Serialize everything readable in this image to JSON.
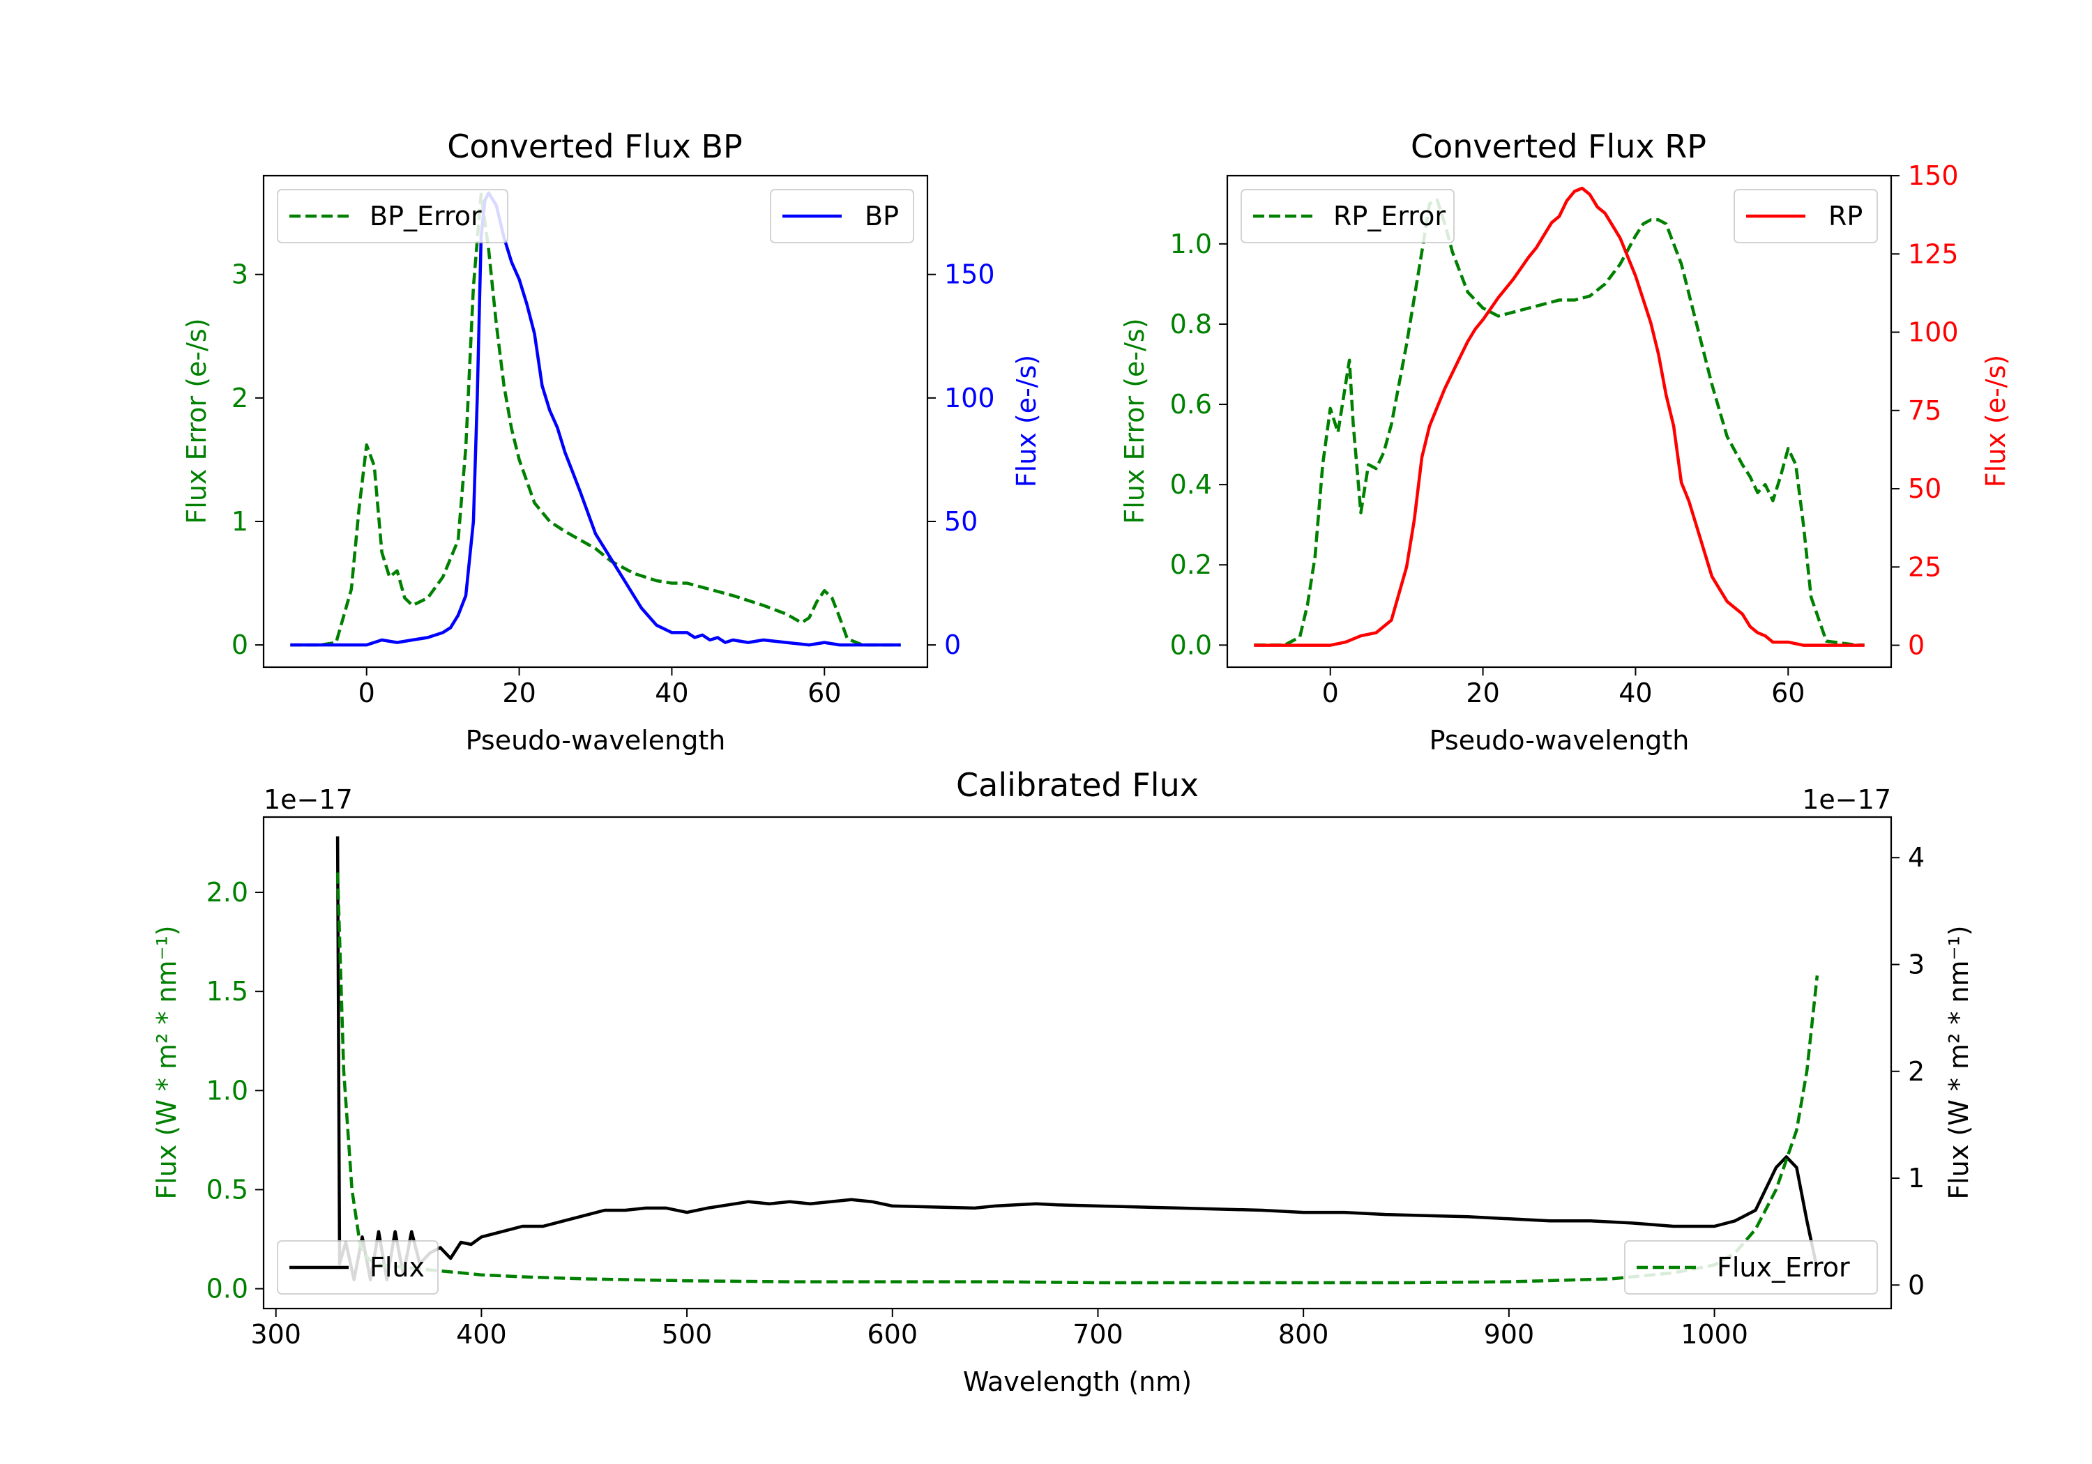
{
  "chart_data": [
    {
      "type": "line",
      "title": "Converted Flux BP",
      "xlabel": "Pseudo-wavelength",
      "xlim": [
        -13.5,
        73.5
      ],
      "xticks": [
        0,
        20,
        40,
        60
      ],
      "left_axis": {
        "label": "Flux Error (e-/s)",
        "color": "#008000",
        "ylim": [
          -0.18,
          3.8
        ],
        "ticks": [
          0,
          1,
          2,
          3
        ]
      },
      "right_axis": {
        "label": "Flux (e-/s)",
        "color": "#0000ff",
        "ylim": [
          -9,
          190
        ],
        "ticks": [
          0,
          50,
          100,
          150
        ]
      },
      "series": [
        {
          "name": "BP_Error",
          "axis": "left",
          "color": "#008000",
          "style": "dashed",
          "x": [
            -10,
            -6,
            -4,
            -2,
            -1,
            0,
            1,
            2,
            3,
            4,
            5,
            6,
            8,
            10,
            12,
            13,
            14,
            15,
            16,
            17,
            18,
            19,
            20,
            22,
            24,
            26,
            28,
            30,
            32,
            35,
            38,
            40,
            42,
            45,
            48,
            52,
            55,
            57,
            58,
            59,
            60,
            61,
            62,
            63,
            65,
            67,
            69,
            70
          ],
          "y": [
            0,
            0,
            0.02,
            0.45,
            1.1,
            1.62,
            1.45,
            0.75,
            0.55,
            0.6,
            0.38,
            0.32,
            0.38,
            0.55,
            0.85,
            1.6,
            2.9,
            3.65,
            3.2,
            2.6,
            2.1,
            1.75,
            1.5,
            1.15,
            1.0,
            0.92,
            0.85,
            0.78,
            0.68,
            0.58,
            0.52,
            0.5,
            0.5,
            0.45,
            0.4,
            0.32,
            0.25,
            0.18,
            0.22,
            0.35,
            0.44,
            0.38,
            0.22,
            0.05,
            0,
            0,
            0,
            0
          ]
        },
        {
          "name": "BP",
          "axis": "right",
          "color": "#0000ff",
          "style": "solid",
          "x": [
            -10,
            -5,
            0,
            2,
            4,
            6,
            8,
            10,
            11,
            12,
            13,
            14,
            14.5,
            15,
            15.5,
            16,
            17,
            18,
            19,
            20,
            21,
            22,
            23,
            24,
            25,
            26,
            27,
            28,
            30,
            32,
            34,
            36,
            38,
            40,
            41,
            42,
            43,
            44,
            45,
            46,
            47,
            48,
            50,
            52,
            55,
            58,
            60,
            62,
            65,
            70
          ],
          "y": [
            0,
            0,
            0,
            2,
            1,
            2,
            3,
            5,
            7,
            12,
            20,
            50,
            100,
            165,
            180,
            183,
            178,
            165,
            155,
            148,
            138,
            126,
            105,
            95,
            88,
            78,
            70,
            62,
            45,
            35,
            25,
            15,
            8,
            5,
            5,
            5,
            3,
            4,
            2,
            3,
            1,
            2,
            1,
            2,
            1,
            0,
            1,
            0,
            0,
            0
          ]
        }
      ],
      "legend": [
        {
          "label": "BP_Error",
          "position": "upper-left"
        },
        {
          "label": "BP",
          "position": "upper-right"
        }
      ]
    },
    {
      "type": "line",
      "title": "Converted Flux RP",
      "xlabel": "Pseudo-wavelength",
      "xlim": [
        -13.5,
        73.5
      ],
      "xticks": [
        0,
        20,
        40,
        60
      ],
      "left_axis": {
        "label": "Flux Error (e-/s)",
        "color": "#008000",
        "ylim": [
          -0.055,
          1.17
        ],
        "ticks": [
          0.0,
          0.2,
          0.4,
          0.6,
          0.8,
          1.0
        ]
      },
      "right_axis": {
        "label": "Flux (e-/s)",
        "color": "#ff0000",
        "ylim": [
          -7,
          150
        ],
        "ticks": [
          0,
          25,
          50,
          75,
          100,
          125,
          150
        ]
      },
      "series": [
        {
          "name": "RP_Error",
          "axis": "left",
          "color": "#008000",
          "style": "dashed",
          "x": [
            -10,
            -6,
            -4,
            -3,
            -2,
            -1,
            0,
            1,
            2,
            2.5,
            3,
            4,
            5,
            6,
            7,
            8,
            10,
            12,
            13,
            14,
            15,
            16,
            18,
            20,
            22,
            24,
            26,
            28,
            30,
            32,
            34,
            36,
            38,
            40,
            41,
            42,
            43,
            44,
            46,
            48,
            50,
            52,
            54,
            55,
            56,
            57,
            58,
            59,
            60,
            61,
            62,
            63,
            65,
            69,
            70
          ],
          "y": [
            0,
            0,
            0.02,
            0.1,
            0.22,
            0.45,
            0.59,
            0.53,
            0.65,
            0.71,
            0.55,
            0.33,
            0.45,
            0.44,
            0.48,
            0.55,
            0.75,
            0.98,
            1.1,
            1.11,
            1.05,
            0.98,
            0.88,
            0.84,
            0.82,
            0.83,
            0.84,
            0.85,
            0.86,
            0.86,
            0.87,
            0.9,
            0.95,
            1.02,
            1.05,
            1.06,
            1.06,
            1.05,
            0.95,
            0.8,
            0.65,
            0.52,
            0.45,
            0.42,
            0.38,
            0.4,
            0.36,
            0.42,
            0.49,
            0.45,
            0.3,
            0.12,
            0.01,
            0,
            0
          ]
        },
        {
          "name": "RP",
          "axis": "right",
          "color": "#ff0000",
          "style": "solid",
          "x": [
            -10,
            -2,
            0,
            2,
            4,
            6,
            8,
            10,
            11,
            12,
            13,
            14,
            15,
            16,
            17,
            18,
            19,
            20,
            22,
            24,
            26,
            27,
            28,
            29,
            30,
            31,
            32,
            33,
            34,
            35,
            36,
            37,
            38,
            40,
            42,
            43,
            44,
            45,
            46,
            47,
            48,
            50,
            52,
            54,
            55,
            56,
            57,
            58,
            60,
            62,
            65,
            70
          ],
          "y": [
            0,
            0,
            0,
            1,
            3,
            4,
            8,
            25,
            40,
            60,
            70,
            76,
            82,
            87,
            92,
            97,
            101,
            104,
            111,
            117,
            124,
            127,
            131,
            135,
            137,
            142,
            145,
            146,
            144,
            140,
            138,
            134,
            130,
            118,
            103,
            93,
            80,
            70,
            52,
            46,
            38,
            22,
            14,
            10,
            6,
            4,
            3,
            1,
            1,
            0,
            0,
            0
          ]
        }
      ],
      "legend": [
        {
          "label": "RP_Error",
          "position": "upper-left"
        },
        {
          "label": "RP",
          "position": "upper-right"
        }
      ]
    },
    {
      "type": "line",
      "title": "Calibrated Flux",
      "xlabel": "Wavelength (nm)",
      "xlim": [
        294,
        1086
      ],
      "xticks": [
        300,
        400,
        500,
        600,
        700,
        800,
        900,
        1000
      ],
      "left_axis": {
        "label": "Flux (W * m² * nm⁻¹)",
        "color": "#008000",
        "ylim": [
          -0.1,
          2.38
        ],
        "ticks": [
          0.0,
          0.5,
          1.0,
          1.5,
          2.0
        ],
        "offset_text": "1e−17"
      },
      "right_axis": {
        "label": "Flux (W * m² * nm⁻¹)",
        "color": "#000000",
        "ylim": [
          -0.22,
          4.38
        ],
        "ticks": [
          0,
          1,
          2,
          3,
          4
        ],
        "offset_text": "1e−17"
      },
      "series": [
        {
          "name": "Flux",
          "axis": "right",
          "color": "#000000",
          "style": "solid",
          "x": [
            330,
            331,
            334,
            338,
            342,
            346,
            350,
            354,
            358,
            362,
            366,
            370,
            375,
            380,
            385,
            390,
            395,
            400,
            410,
            420,
            430,
            440,
            450,
            460,
            470,
            480,
            490,
            500,
            510,
            520,
            530,
            540,
            550,
            560,
            570,
            580,
            590,
            600,
            620,
            640,
            650,
            660,
            670,
            680,
            700,
            720,
            740,
            760,
            780,
            800,
            820,
            840,
            860,
            880,
            900,
            920,
            940,
            960,
            980,
            1000,
            1010,
            1020,
            1030,
            1035,
            1040,
            1045,
            1050
          ],
          "y": [
            4.2,
            0.2,
            0.4,
            0.05,
            0.45,
            0.05,
            0.5,
            0.05,
            0.5,
            0.1,
            0.5,
            0.2,
            0.3,
            0.35,
            0.25,
            0.4,
            0.38,
            0.45,
            0.5,
            0.55,
            0.55,
            0.6,
            0.65,
            0.7,
            0.7,
            0.72,
            0.72,
            0.68,
            0.72,
            0.75,
            0.78,
            0.76,
            0.78,
            0.76,
            0.78,
            0.8,
            0.78,
            0.74,
            0.73,
            0.72,
            0.74,
            0.75,
            0.76,
            0.75,
            0.74,
            0.73,
            0.72,
            0.71,
            0.7,
            0.68,
            0.68,
            0.66,
            0.65,
            0.64,
            0.62,
            0.6,
            0.6,
            0.58,
            0.55,
            0.55,
            0.6,
            0.7,
            1.1,
            1.2,
            1.1,
            0.6,
            0.15
          ]
        },
        {
          "name": "Flux_Error",
          "axis": "left",
          "color": "#008000",
          "style": "dashed",
          "x": [
            330,
            333,
            337,
            341,
            345,
            350,
            360,
            370,
            380,
            390,
            400,
            420,
            450,
            500,
            550,
            600,
            650,
            700,
            750,
            800,
            850,
            900,
            950,
            980,
            1000,
            1010,
            1020,
            1030,
            1040,
            1045,
            1050
          ],
          "y": [
            2.1,
            1.1,
            0.5,
            0.22,
            0.15,
            0.12,
            0.11,
            0.1,
            0.09,
            0.08,
            0.07,
            0.06,
            0.05,
            0.04,
            0.035,
            0.035,
            0.035,
            0.03,
            0.03,
            0.03,
            0.03,
            0.035,
            0.05,
            0.08,
            0.12,
            0.18,
            0.3,
            0.5,
            0.8,
            1.1,
            1.58
          ]
        }
      ],
      "legend": [
        {
          "label": "Flux",
          "position": "lower-left"
        },
        {
          "label": "Flux_Error",
          "position": "lower-right"
        }
      ]
    }
  ]
}
